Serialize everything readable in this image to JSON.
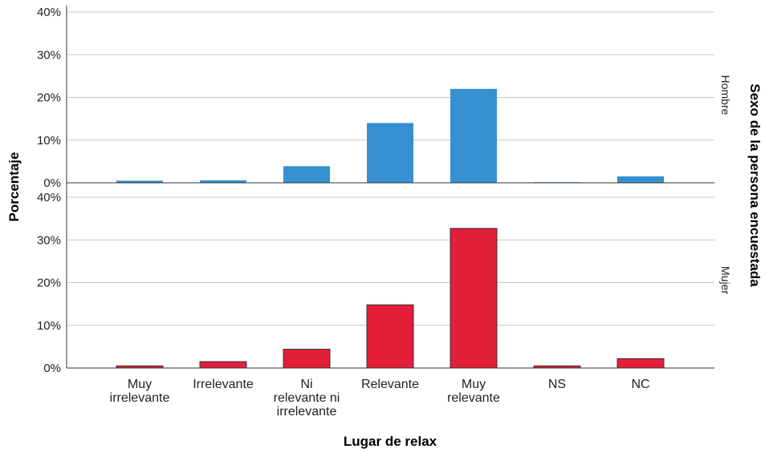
{
  "chart_data": {
    "type": "bar",
    "xlabel": "Lugar de relax",
    "ylabel": "Porcentaje",
    "facet_label": "Sexo de la persona encuestada",
    "categories": [
      [
        "Muy",
        "irrelevante"
      ],
      [
        "Irrelevante"
      ],
      [
        "Ni",
        "relevante ni",
        "irrelevante"
      ],
      [
        "Relevante"
      ],
      [
        "Muy",
        "relevante"
      ],
      [
        "NS"
      ],
      [
        "NC"
      ]
    ],
    "ylim": [
      0,
      40
    ],
    "yticks": [
      "0%",
      "10%",
      "20%",
      "30%",
      "40%"
    ],
    "grid": true,
    "panels": [
      {
        "name": "Hombre",
        "color": "#3591d1",
        "values": [
          0.5,
          0.6,
          3.9,
          14.0,
          22.0,
          0.1,
          1.5
        ]
      },
      {
        "name": "Mujer",
        "color": "#e31f3a",
        "values": [
          0.5,
          1.5,
          4.4,
          14.8,
          32.7,
          0.5,
          2.2
        ]
      }
    ]
  }
}
